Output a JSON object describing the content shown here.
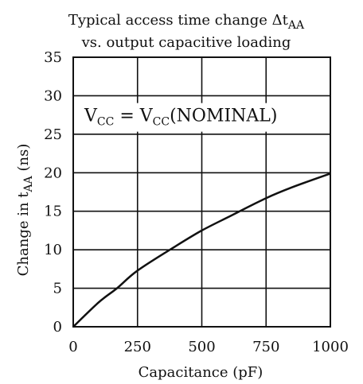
{
  "chart_data": {
    "type": "line",
    "title_line1_prefix": "Typical access time change Δt",
    "title_line1_sub": "AA",
    "title_line2": "vs. output capacitive loading",
    "xlabel": "Capacitance (pF)",
    "ylabel_prefix": "Change in t",
    "ylabel_sub": "AA",
    "ylabel_suffix": " (ns)",
    "annotation": {
      "v1": "V",
      "s1": "CC",
      "eq": " = V",
      "s2": "CC",
      "tail": "(NOMINAL)"
    },
    "xlim": [
      0,
      1000
    ],
    "ylim": [
      0,
      35
    ],
    "x_ticks": [
      0,
      250,
      500,
      750,
      1000
    ],
    "y_ticks": [
      0,
      5,
      10,
      15,
      20,
      25,
      30,
      35
    ],
    "x_tick_labels": [
      "0",
      "250",
      "500",
      "750",
      "1000"
    ],
    "y_tick_labels": [
      "0",
      "5",
      "10",
      "15",
      "20",
      "25",
      "30",
      "35"
    ],
    "grid": true,
    "series": [
      {
        "x": [
          0,
          100,
          170,
          250,
          400,
          500,
          600,
          750,
          850,
          1000
        ],
        "y": [
          0,
          3.2,
          5,
          7.3,
          10.5,
          12.5,
          14.2,
          16.7,
          18.1,
          19.9
        ]
      }
    ]
  }
}
